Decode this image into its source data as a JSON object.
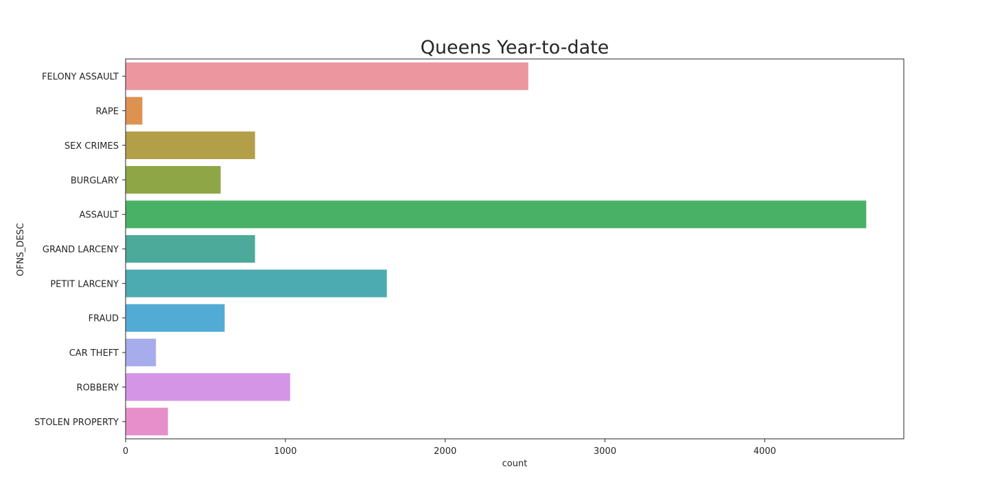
{
  "chart_data": {
    "type": "bar",
    "orientation": "horizontal",
    "title": "Queens Year-to-date",
    "xlabel": "count",
    "ylabel": "OFNS_DESC",
    "xlim": [
      0,
      4870
    ],
    "xticks": [
      0,
      1000,
      2000,
      3000,
      4000
    ],
    "grid": false,
    "categories": [
      "FELONY ASSAULT",
      "RAPE",
      "SEX CRIMES",
      "BURGLARY",
      "ASSAULT",
      "GRAND LARCENY",
      "PETIT LARCENY",
      "FRAUD",
      "CAR THEFT",
      "ROBBERY",
      "STOLEN PROPERTY"
    ],
    "values": [
      2520,
      105,
      810,
      595,
      4635,
      810,
      1635,
      620,
      190,
      1030,
      265
    ],
    "colors": [
      "#ec97a0",
      "#de9250",
      "#b29f48",
      "#8fa646",
      "#49b166",
      "#4baa99",
      "#4cabb1",
      "#52abd5",
      "#a7acec",
      "#d595e7",
      "#e78fcb"
    ]
  }
}
